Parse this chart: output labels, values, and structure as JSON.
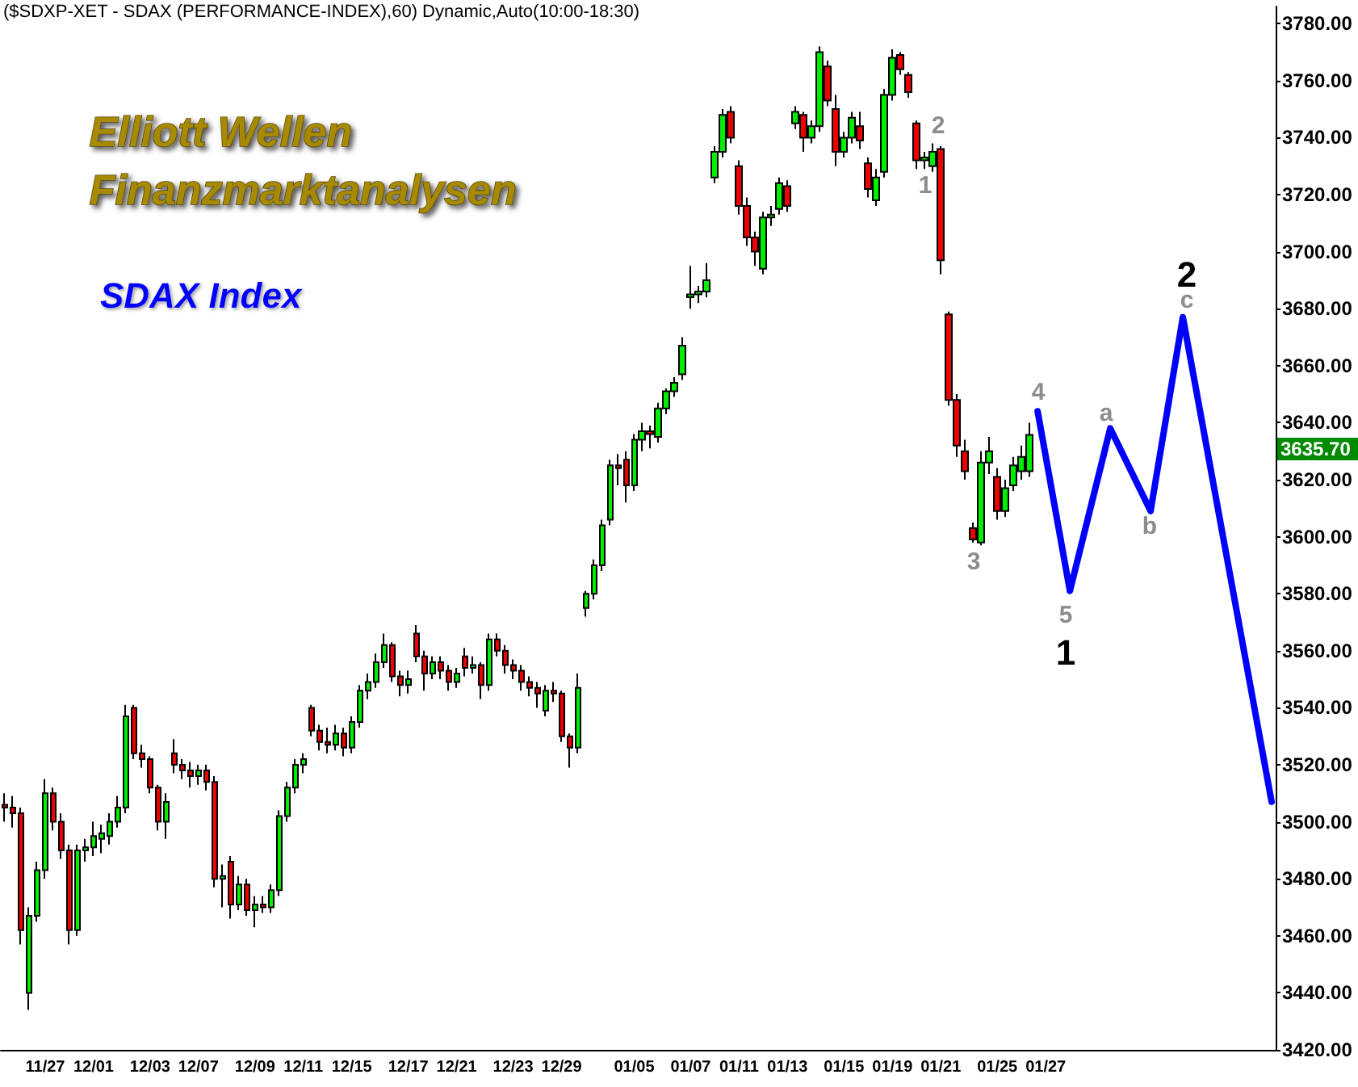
{
  "chart_data": {
    "type": "candlestick",
    "title": "($SDXP-XET - SDAX (PERFORMANCE-INDEX),60) Dynamic,Auto(10:00-18:30)",
    "subtitle": "Elliott Wellen\nFinanzmarktanalysen",
    "annotations": [
      "SDAX Index",
      "1",
      "2",
      "3",
      "4",
      "5",
      "1",
      "a",
      "b",
      "2",
      "c",
      "3635.70"
    ],
    "ylim": [
      3420,
      3786
    ],
    "yticks": [
      {
        "value": 3420,
        "label": "3420.00"
      },
      {
        "value": 3440,
        "label": "3440.00"
      },
      {
        "value": 3460,
        "label": "3460.00"
      },
      {
        "value": 3480,
        "label": "3480.00"
      },
      {
        "value": 3500,
        "label": "3500.00"
      },
      {
        "value": 3520,
        "label": "3520.00"
      },
      {
        "value": 3540,
        "label": "3540.00"
      },
      {
        "value": 3560,
        "label": "3560.00"
      },
      {
        "value": 3580,
        "label": "3580.00"
      },
      {
        "value": 3600,
        "label": "3600.00"
      },
      {
        "value": 3620,
        "label": "3620.00"
      },
      {
        "value": 3640,
        "label": "3640.00"
      },
      {
        "value": 3660,
        "label": "3660.00"
      },
      {
        "value": 3680,
        "label": "3680.00"
      },
      {
        "value": 3700,
        "label": "3700.00"
      },
      {
        "value": 3720,
        "label": "3720.00"
      },
      {
        "value": 3740,
        "label": "3740.00"
      },
      {
        "value": 3760,
        "label": "3760.00"
      },
      {
        "value": 3780,
        "label": "3780.00"
      }
    ],
    "categories": [
      null,
      null,
      null,
      null,
      null,
      "11/27",
      null,
      null,
      null,
      null,
      null,
      "12/01",
      null,
      null,
      null,
      null,
      null,
      null,
      "12/03",
      null,
      null,
      null,
      null,
      null,
      "12/07",
      null,
      null,
      null,
      null,
      null,
      null,
      "12/09",
      null,
      null,
      null,
      null,
      null,
      "12/11",
      null,
      null,
      null,
      null,
      null,
      "12/15",
      null,
      null,
      null,
      null,
      null,
      null,
      "12/17",
      null,
      null,
      null,
      null,
      null,
      "12/21",
      null,
      null,
      null,
      null,
      null,
      null,
      "12/23",
      null,
      null,
      null,
      null,
      null,
      "12/29",
      null,
      null,
      null,
      null,
      null,
      null,
      null,
      null,
      "01/05",
      null,
      null,
      null,
      null,
      null,
      null,
      "01/07",
      null,
      null,
      null,
      null,
      null,
      "01/11",
      null,
      null,
      null,
      null,
      null,
      "01/13",
      null,
      null,
      null,
      null,
      null,
      null,
      "01/15",
      null,
      null,
      null,
      null,
      null,
      "01/19",
      null,
      null,
      null,
      null,
      null,
      "01/21",
      null,
      null,
      null,
      null,
      null,
      null,
      "01/25",
      null,
      null,
      null,
      null,
      null,
      "01/27",
      null,
      null,
      null,
      null,
      null,
      null,
      null,
      null,
      null,
      null,
      null,
      null,
      null,
      null,
      null,
      null,
      null,
      null,
      null,
      null,
      null,
      null,
      null,
      null,
      null,
      null,
      null,
      null
    ],
    "series": [
      {
        "colors": [
          "#ee0000",
          "#ee0000",
          "#ee0000",
          "#00ee00",
          "#00ee00",
          "#00ee00",
          "#ee0000",
          "#ee0000",
          "#ee0000",
          "#00ee00",
          "#00ee00",
          "#00ee00",
          "#00ee00",
          "#00ee00",
          "#00ee00",
          "#00ee00",
          "#ee0000",
          "#ee0000",
          "#ee0000",
          "#ee0000",
          "#00ee00",
          "#ee0000",
          "#ee0000",
          "#ee0000",
          "#00ee00",
          "#ee0000",
          "#ee0000",
          "#00ee00",
          "#ee0000",
          "#00ee00",
          "#ee0000",
          "#00ee00",
          "#ee0000",
          "#00ee00",
          "#00ee00",
          "#00ee00",
          "#00ee00",
          "#00ee00",
          "#ee0000",
          "#ee0000",
          "#ee0000",
          "#00ee00",
          "#ee0000",
          "#00ee00",
          "#00ee00",
          "#00ee00",
          "#00ee00",
          "#00ee00",
          "#ee0000",
          "#ee0000",
          "#00ee00",
          "#ee0000",
          "#ee0000",
          "#00ee00",
          "#ee0000",
          "#ee0000",
          "#00ee00",
          "#ee0000",
          "#00ee00",
          "#ee0000",
          "#00ee00",
          "#ee0000",
          "#ee0000",
          "#ee0000",
          "#ee0000",
          "#ee0000",
          "#ee0000",
          "#00ee00",
          "#ee0000",
          "#ee0000",
          "#ee0000",
          "#00ee00",
          "#00ee00",
          "#00ee00",
          "#00ee00",
          "#00ee00",
          "#ee0000",
          "#ee0000",
          "#00ee00",
          "#00ee00",
          "#ee0000",
          "#00ee00",
          "#00ee00",
          "#00ee00",
          "#00ee00",
          "#00ee00",
          "#00ee00",
          "#00ee00",
          "#00ee00",
          "#00ee00",
          "#ee0000",
          "#ee0000",
          "#ee0000",
          "#ee0000",
          "#00ee00",
          "#00ee00",
          "#00ee00",
          "#ee0000",
          "#00ee00",
          "#ee0000",
          "#00ee00",
          "#00ee00",
          "#ee0000",
          "#ee0000",
          "#00ee00",
          "#00ee00",
          "#ee0000",
          "#ee0000",
          "#00ee00",
          "#00ee00",
          "#00ee00",
          "#ee0000",
          "#ee0000",
          "#ee0000",
          "#00ee00",
          "#00ee00",
          "#ee0000",
          "#ee0000",
          "#ee0000",
          "#ee0000",
          "#ee0000",
          "#00ee00",
          "#00ee00",
          "#ee0000",
          "#00ee00",
          "#00ee00",
          "#00ee00",
          "#00ee00",
          null,
          null,
          null,
          null,
          null,
          null,
          null,
          null,
          null,
          null,
          null,
          null,
          null,
          null,
          null,
          null,
          null,
          null,
          null,
          null,
          null,
          null,
          null,
          null,
          null,
          null,
          null,
          null,
          null,
          null
        ],
        "ohlc": [
          [
            3506,
            3510,
            3500,
            3505
          ],
          [
            3505,
            3509,
            3498,
            3503
          ],
          [
            3503,
            3505,
            3457,
            3462
          ],
          [
            3440,
            3470,
            3434,
            3467
          ],
          [
            3467,
            3486,
            3465,
            3483
          ],
          [
            3483,
            3515,
            3480,
            3510
          ],
          [
            3510,
            3512,
            3497,
            3500
          ],
          [
            3500,
            3503,
            3487,
            3490
          ],
          [
            3490,
            3492,
            3457,
            3462
          ],
          [
            3462,
            3492,
            3460,
            3490
          ],
          [
            3490,
            3494,
            3486,
            3491
          ],
          [
            3491,
            3500,
            3488,
            3495
          ],
          [
            3494,
            3499,
            3489,
            3496
          ],
          [
            3495,
            3503,
            3492,
            3500
          ],
          [
            3500,
            3509,
            3498,
            3505
          ],
          [
            3505,
            3541,
            3503,
            3537
          ],
          [
            3540,
            3541,
            3522,
            3524
          ],
          [
            3524,
            3527,
            3519,
            3522
          ],
          [
            3522,
            3523,
            3510,
            3512
          ],
          [
            3512,
            3513,
            3497,
            3500
          ],
          [
            3500,
            3510,
            3494,
            3507
          ],
          [
            3524,
            3529,
            3517,
            3520
          ],
          [
            3520,
            3522,
            3515,
            3518
          ],
          [
            3518,
            3521,
            3512,
            3516
          ],
          [
            3516,
            3520,
            3513,
            3518
          ],
          [
            3518,
            3520,
            3511,
            3514
          ],
          [
            3514,
            3516,
            3477,
            3480
          ],
          [
            3480,
            3485,
            3470,
            3481
          ],
          [
            3486,
            3488,
            3466,
            3471
          ],
          [
            3471,
            3481,
            3469,
            3478
          ],
          [
            3478,
            3480,
            3467,
            3469
          ],
          [
            3469,
            3474,
            3463,
            3471
          ],
          [
            3471,
            3474,
            3468,
            3470
          ],
          [
            3470,
            3478,
            3468,
            3476
          ],
          [
            3476,
            3504,
            3474,
            3502
          ],
          [
            3502,
            3514,
            3500,
            3512
          ],
          [
            3512,
            3522,
            3510,
            3520
          ],
          [
            3520,
            3524,
            3517,
            3522
          ],
          [
            3540,
            3541,
            3530,
            3532
          ],
          [
            3532,
            3534,
            3525,
            3528
          ],
          [
            3528,
            3533,
            3524,
            3527
          ],
          [
            3527,
            3534,
            3525,
            3531
          ],
          [
            3531,
            3533,
            3523,
            3526
          ],
          [
            3526,
            3537,
            3524,
            3535
          ],
          [
            3535,
            3548,
            3533,
            3546
          ],
          [
            3546,
            3552,
            3543,
            3549
          ],
          [
            3549,
            3559,
            3547,
            3556
          ],
          [
            3556,
            3566,
            3554,
            3562
          ],
          [
            3562,
            3563,
            3549,
            3551
          ],
          [
            3551,
            3553,
            3544,
            3548
          ],
          [
            3548,
            3553,
            3545,
            3550
          ],
          [
            3566,
            3569,
            3556,
            3558
          ],
          [
            3558,
            3560,
            3546,
            3552
          ],
          [
            3552,
            3558,
            3550,
            3556
          ],
          [
            3556,
            3558,
            3550,
            3553
          ],
          [
            3553,
            3555,
            3546,
            3549
          ],
          [
            3549,
            3554,
            3547,
            3552
          ],
          [
            3558,
            3561,
            3551,
            3554
          ],
          [
            3554,
            3558,
            3552,
            3555
          ],
          [
            3555,
            3556,
            3543,
            3548
          ],
          [
            3548,
            3566,
            3546,
            3564
          ],
          [
            3564,
            3566,
            3558,
            3560
          ],
          [
            3560,
            3562,
            3552,
            3555
          ],
          [
            3555,
            3557,
            3550,
            3553
          ],
          [
            3553,
            3555,
            3546,
            3549
          ],
          [
            3549,
            3551,
            3544,
            3547
          ],
          [
            3547,
            3549,
            3540,
            3545
          ],
          [
            3539,
            3548,
            3537,
            3546
          ],
          [
            3546,
            3549,
            3542,
            3545
          ],
          [
            3545,
            3546,
            3528,
            3530
          ],
          [
            3530,
            3531,
            3519,
            3526
          ],
          [
            3526,
            3552,
            3524,
            3547
          ],
          [
            3575,
            3581,
            3572,
            3580
          ],
          [
            3580,
            3592,
            3578,
            3590
          ],
          [
            3590,
            3606,
            3588,
            3604
          ],
          [
            3606,
            3627,
            3604,
            3625
          ],
          [
            3625,
            3629,
            3618,
            3624
          ],
          [
            3627,
            3630,
            3612,
            3618
          ],
          [
            3618,
            3636,
            3616,
            3634
          ],
          [
            3634,
            3640,
            3630,
            3637
          ],
          [
            3637,
            3639,
            3631,
            3636
          ],
          [
            3635,
            3647,
            3633,
            3645
          ],
          [
            3645,
            3652,
            3643,
            3651
          ],
          [
            3651,
            3656,
            3649,
            3654
          ],
          [
            3657,
            3670,
            3655,
            3667
          ],
          [
            3684,
            3695,
            3680,
            3685
          ],
          [
            3685,
            3688,
            3682,
            3686
          ],
          [
            3686,
            3696,
            3684,
            3690
          ],
          [
            3726,
            3737,
            3724,
            3735
          ],
          [
            3735,
            3750,
            3733,
            3748
          ],
          [
            3749,
            3751,
            3738,
            3740
          ],
          [
            3730,
            3732,
            3713,
            3716
          ],
          [
            3716,
            3719,
            3702,
            3705
          ],
          [
            3705,
            3707,
            3695,
            3700
          ],
          [
            3694,
            3714,
            3692,
            3712
          ],
          [
            3712,
            3716,
            3709,
            3713
          ],
          [
            3715,
            3726,
            3713,
            3724
          ],
          [
            3723,
            3725,
            3714,
            3716
          ],
          [
            3745,
            3751,
            3743,
            3749
          ],
          [
            3748,
            3749,
            3735,
            3740
          ],
          [
            3740,
            3746,
            3738,
            3744
          ],
          [
            3744,
            3772,
            3742,
            3770
          ],
          [
            3765,
            3767,
            3751,
            3753
          ],
          [
            3750,
            3755,
            3730,
            3735
          ],
          [
            3735,
            3742,
            3733,
            3740
          ],
          [
            3740,
            3749,
            3738,
            3747
          ],
          [
            3744,
            3749,
            3736,
            3739
          ],
          [
            3731,
            3733,
            3719,
            3722
          ],
          [
            3718,
            3729,
            3716,
            3726
          ],
          [
            3728,
            3757,
            3726,
            3755
          ],
          [
            3755,
            3771,
            3753,
            3768
          ],
          [
            3769,
            3770,
            3762,
            3764
          ],
          [
            3762,
            3763,
            3754,
            3756
          ],
          [
            3745,
            3746,
            3729,
            3732
          ],
          [
            3732,
            3735,
            3729,
            3733
          ],
          [
            3730,
            3738,
            3728,
            3735
          ],
          [
            3736,
            3737,
            3692,
            3697
          ],
          [
            3678,
            3679,
            3646,
            3648
          ],
          [
            3648,
            3650,
            3628,
            3632
          ],
          [
            3630,
            3634,
            3620,
            3623
          ],
          [
            3603,
            3605,
            3598,
            3599
          ],
          [
            3598,
            3630,
            3597,
            3626
          ],
          [
            3626,
            3635,
            3622,
            3630
          ],
          [
            3621,
            3624,
            3606,
            3609
          ],
          [
            3609,
            3620,
            3607,
            3617
          ],
          [
            3618,
            3628,
            3616,
            3625
          ],
          [
            3623,
            3632,
            3620,
            3628
          ],
          [
            3623,
            3640,
            3621,
            3635.7
          ],
          null,
          null,
          null,
          null,
          null,
          null,
          null,
          null,
          null,
          null,
          null,
          null,
          null,
          null,
          null,
          null,
          null,
          null,
          null,
          null,
          null,
          null,
          null,
          null,
          null,
          null,
          null,
          null,
          null,
          null
        ]
      },
      {
        "type": "line",
        "color": "#0000ff",
        "marker": "none",
        "line_style": "solid",
        "values": [
          null,
          null,
          null,
          null,
          null,
          null,
          null,
          null,
          null,
          null,
          null,
          null,
          null,
          null,
          null,
          null,
          null,
          null,
          null,
          null,
          null,
          null,
          null,
          null,
          null,
          null,
          null,
          null,
          null,
          null,
          null,
          null,
          null,
          null,
          null,
          null,
          null,
          null,
          null,
          null,
          null,
          null,
          null,
          null,
          null,
          null,
          null,
          null,
          null,
          null,
          null,
          null,
          null,
          null,
          null,
          null,
          null,
          null,
          null,
          null,
          null,
          null,
          null,
          null,
          null,
          null,
          null,
          null,
          null,
          null,
          null,
          null,
          null,
          null,
          null,
          null,
          null,
          null,
          null,
          null,
          null,
          null,
          null,
          null,
          null,
          null,
          null,
          null,
          null,
          null,
          null,
          null,
          null,
          null,
          null,
          null,
          null,
          null,
          null,
          null,
          null,
          null,
          null,
          null,
          null,
          null,
          null,
          null,
          null,
          null,
          null,
          null,
          null,
          null,
          null,
          null,
          null,
          null,
          null,
          null,
          null,
          null,
          null,
          null,
          null,
          null,
          null,
          null,
          3644,
          null,
          null,
          null,
          3581,
          null,
          null,
          null,
          null,
          3638,
          null,
          null,
          null,
          null,
          3609,
          null,
          null,
          null,
          3677,
          null,
          null,
          null,
          null,
          null,
          null,
          null,
          null,
          null,
          null,
          3507
        ]
      }
    ]
  }
}
